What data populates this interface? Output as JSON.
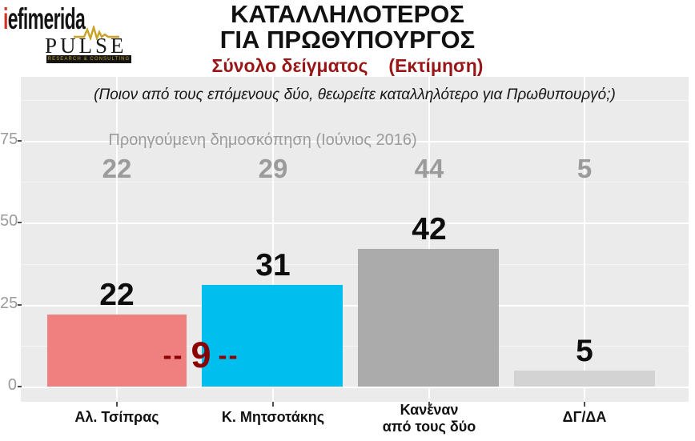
{
  "header": {
    "brand_i": "i",
    "brand_rest": "efimerida",
    "pulse_text": "PULSE",
    "pulse_subtext": "RESEARCH & CONSULTING",
    "title_line1": "ΚΑΤΑΛΛΗΛΟΤΕΡΟΣ",
    "title_line2": "ΓΙΑ ΠΡΩΘΥΠΟΥΡΓΟΣ",
    "subtitle_sample": "Σύνολο δείγματος",
    "subtitle_estimate": "(Εκτίμηση)"
  },
  "chart_data": {
    "type": "bar",
    "title": "ΚΑΤΑΛΛΗΛΟΤΕΡΟΣ ΓΙΑ ΠΡΩΘΥΠΟΥΡΓΟΣ",
    "subtitle": "Σύνολο δείγματος (Εκτίμηση)",
    "question": "(Ποιον από τους επόμενους δύο, θεωρείτε καταλληλότερο για Πρωθυπουργό;)",
    "categories": [
      "Αλ. Τσίπρας",
      "Κ. Μητσοτάκης",
      "Κανέναν από τους δύο",
      "ΔΓ/ΔΑ"
    ],
    "values": [
      22,
      31,
      42,
      5
    ],
    "previous": {
      "label": "Προηγούμενη δημοσκόπηση (Ιούνιος 2016)",
      "values": [
        22,
        29,
        44,
        5
      ]
    },
    "difference_annotation": {
      "dash_left": "--",
      "value": "9",
      "dash_right": "--"
    },
    "bar_colors": [
      "#F08080",
      "#00BFEF",
      "#ABABAB",
      "#D3D3D3"
    ],
    "y_tick_labels": [
      "75",
      "50",
      "25",
      "0"
    ],
    "ylim": [
      0,
      95
    ],
    "grid": true,
    "legend_position": "none",
    "x_labels_lines": [
      [
        "Αλ. Τσίπρας"
      ],
      [
        "Κ. Μητσοτάκης"
      ],
      [
        "Κανέναν",
        "από τους δύο"
      ],
      [
        "ΔΓ/ΔΑ"
      ]
    ]
  },
  "colors": {
    "subtitle_red": "#9A1515",
    "difference_red": "#8B0000",
    "plot_background": "#EBEBEB",
    "axis_text_gray": "#9B9B9B",
    "brand_red": "#D62E1F",
    "pulse_gold": "#C9A227"
  }
}
